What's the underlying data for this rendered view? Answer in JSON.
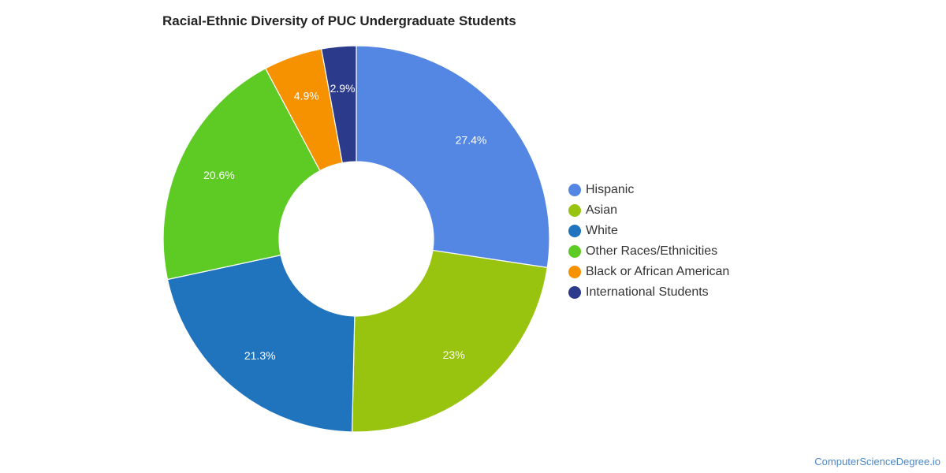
{
  "chart_data": {
    "type": "pie",
    "title": "Racial-Ethnic Diversity of PUC Undergraduate Students",
    "donut": true,
    "legend_position": "right",
    "slices": [
      {
        "name": "Hispanic",
        "value": 27.4,
        "label": "27.4%",
        "color": "#5487e3"
      },
      {
        "name": "Asian",
        "value": 23,
        "label": "23%",
        "color": "#98c30f"
      },
      {
        "name": "White",
        "value": 21.3,
        "label": "21.3%",
        "color": "#1f74bd"
      },
      {
        "name": "Other Races/Ethnicities",
        "value": 20.6,
        "label": "20.6%",
        "color": "#5ecb24"
      },
      {
        "name": "Black or African American",
        "value": 4.9,
        "label": "4.9%",
        "color": "#f69100"
      },
      {
        "name": "International Students",
        "value": 2.9,
        "label": "2.9%",
        "color": "#2c3a8c"
      }
    ]
  },
  "watermark": "ComputerScienceDegree.io"
}
